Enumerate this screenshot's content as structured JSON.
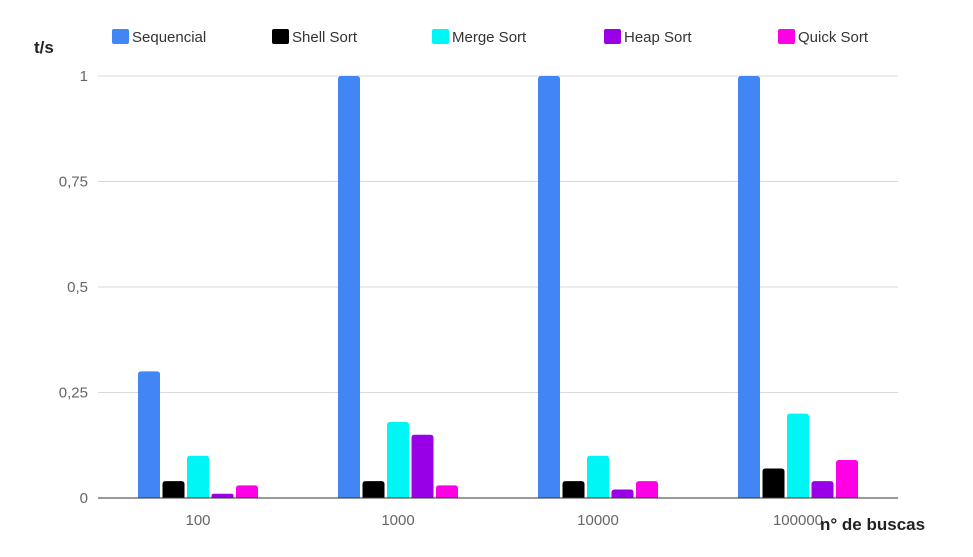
{
  "chart_data": {
    "type": "bar",
    "title": "",
    "xlabel": "n° de buscas",
    "ylabel": "t/s",
    "categories": [
      "100",
      "1000",
      "10000",
      "100000"
    ],
    "ylim": [
      0,
      1
    ],
    "yticks": [
      "0",
      "0,25",
      "0,5",
      "0,75",
      "1"
    ],
    "grid": true,
    "legend_position": "top",
    "series": [
      {
        "name": "Sequencial",
        "color": "#4285f4",
        "values": [
          0.3,
          1.0,
          1.0,
          1.0
        ]
      },
      {
        "name": "Shell Sort",
        "color": "#000000",
        "values": [
          0.04,
          0.04,
          0.04,
          0.07
        ]
      },
      {
        "name": "Merge Sort",
        "color": "#00f5f5",
        "values": [
          0.1,
          0.18,
          0.1,
          0.2
        ]
      },
      {
        "name": "Heap Sort",
        "color": "#9a00e8",
        "values": [
          0.01,
          0.15,
          0.02,
          0.04
        ]
      },
      {
        "name": "Quick Sort",
        "color": "#ff00e6",
        "values": [
          0.03,
          0.03,
          0.04,
          0.09
        ]
      }
    ]
  }
}
